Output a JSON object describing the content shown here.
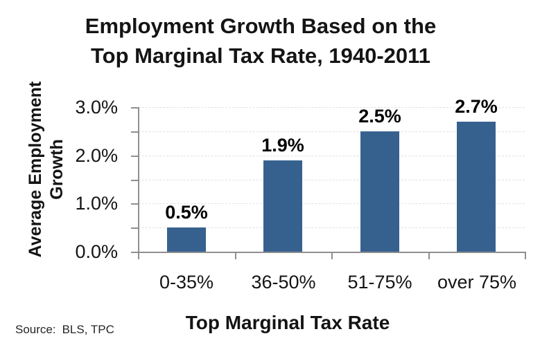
{
  "title": {
    "lines": [
      "Employment Growth Based on the",
      "Top Marginal Tax Rate, 1940-2011"
    ]
  },
  "source": {
    "label": "Source:",
    "value": "BLS, TPC"
  },
  "chart_data": {
    "type": "bar",
    "title": "Employment Growth Based on the Top Marginal Tax Rate, 1940-2011",
    "categories": [
      "0-35%",
      "36-50%",
      "51-75%",
      "over 75%"
    ],
    "values": [
      0.5,
      1.9,
      2.5,
      2.7
    ],
    "data_labels": [
      "0.5%",
      "1.9%",
      "2.5%",
      "2.7%"
    ],
    "xlabel": "Top Marginal Tax Rate",
    "ylabel": "Average Employment Growth",
    "ylim": [
      0,
      3.0
    ],
    "ytick_labels": [
      "0.0%",
      "1.0%",
      "2.0%",
      "3.0%"
    ],
    "ytick_values": [
      0,
      1.0,
      2.0,
      3.0
    ],
    "minor_tick_step": 0.5,
    "gridline_step": 0.5,
    "grid": true,
    "legend": false,
    "bar_color": "#36618F"
  },
  "colors": {
    "bar": "#36618F",
    "axis": "#8f8f8f",
    "gridline": "#e2e2e2",
    "text": "#141414"
  }
}
